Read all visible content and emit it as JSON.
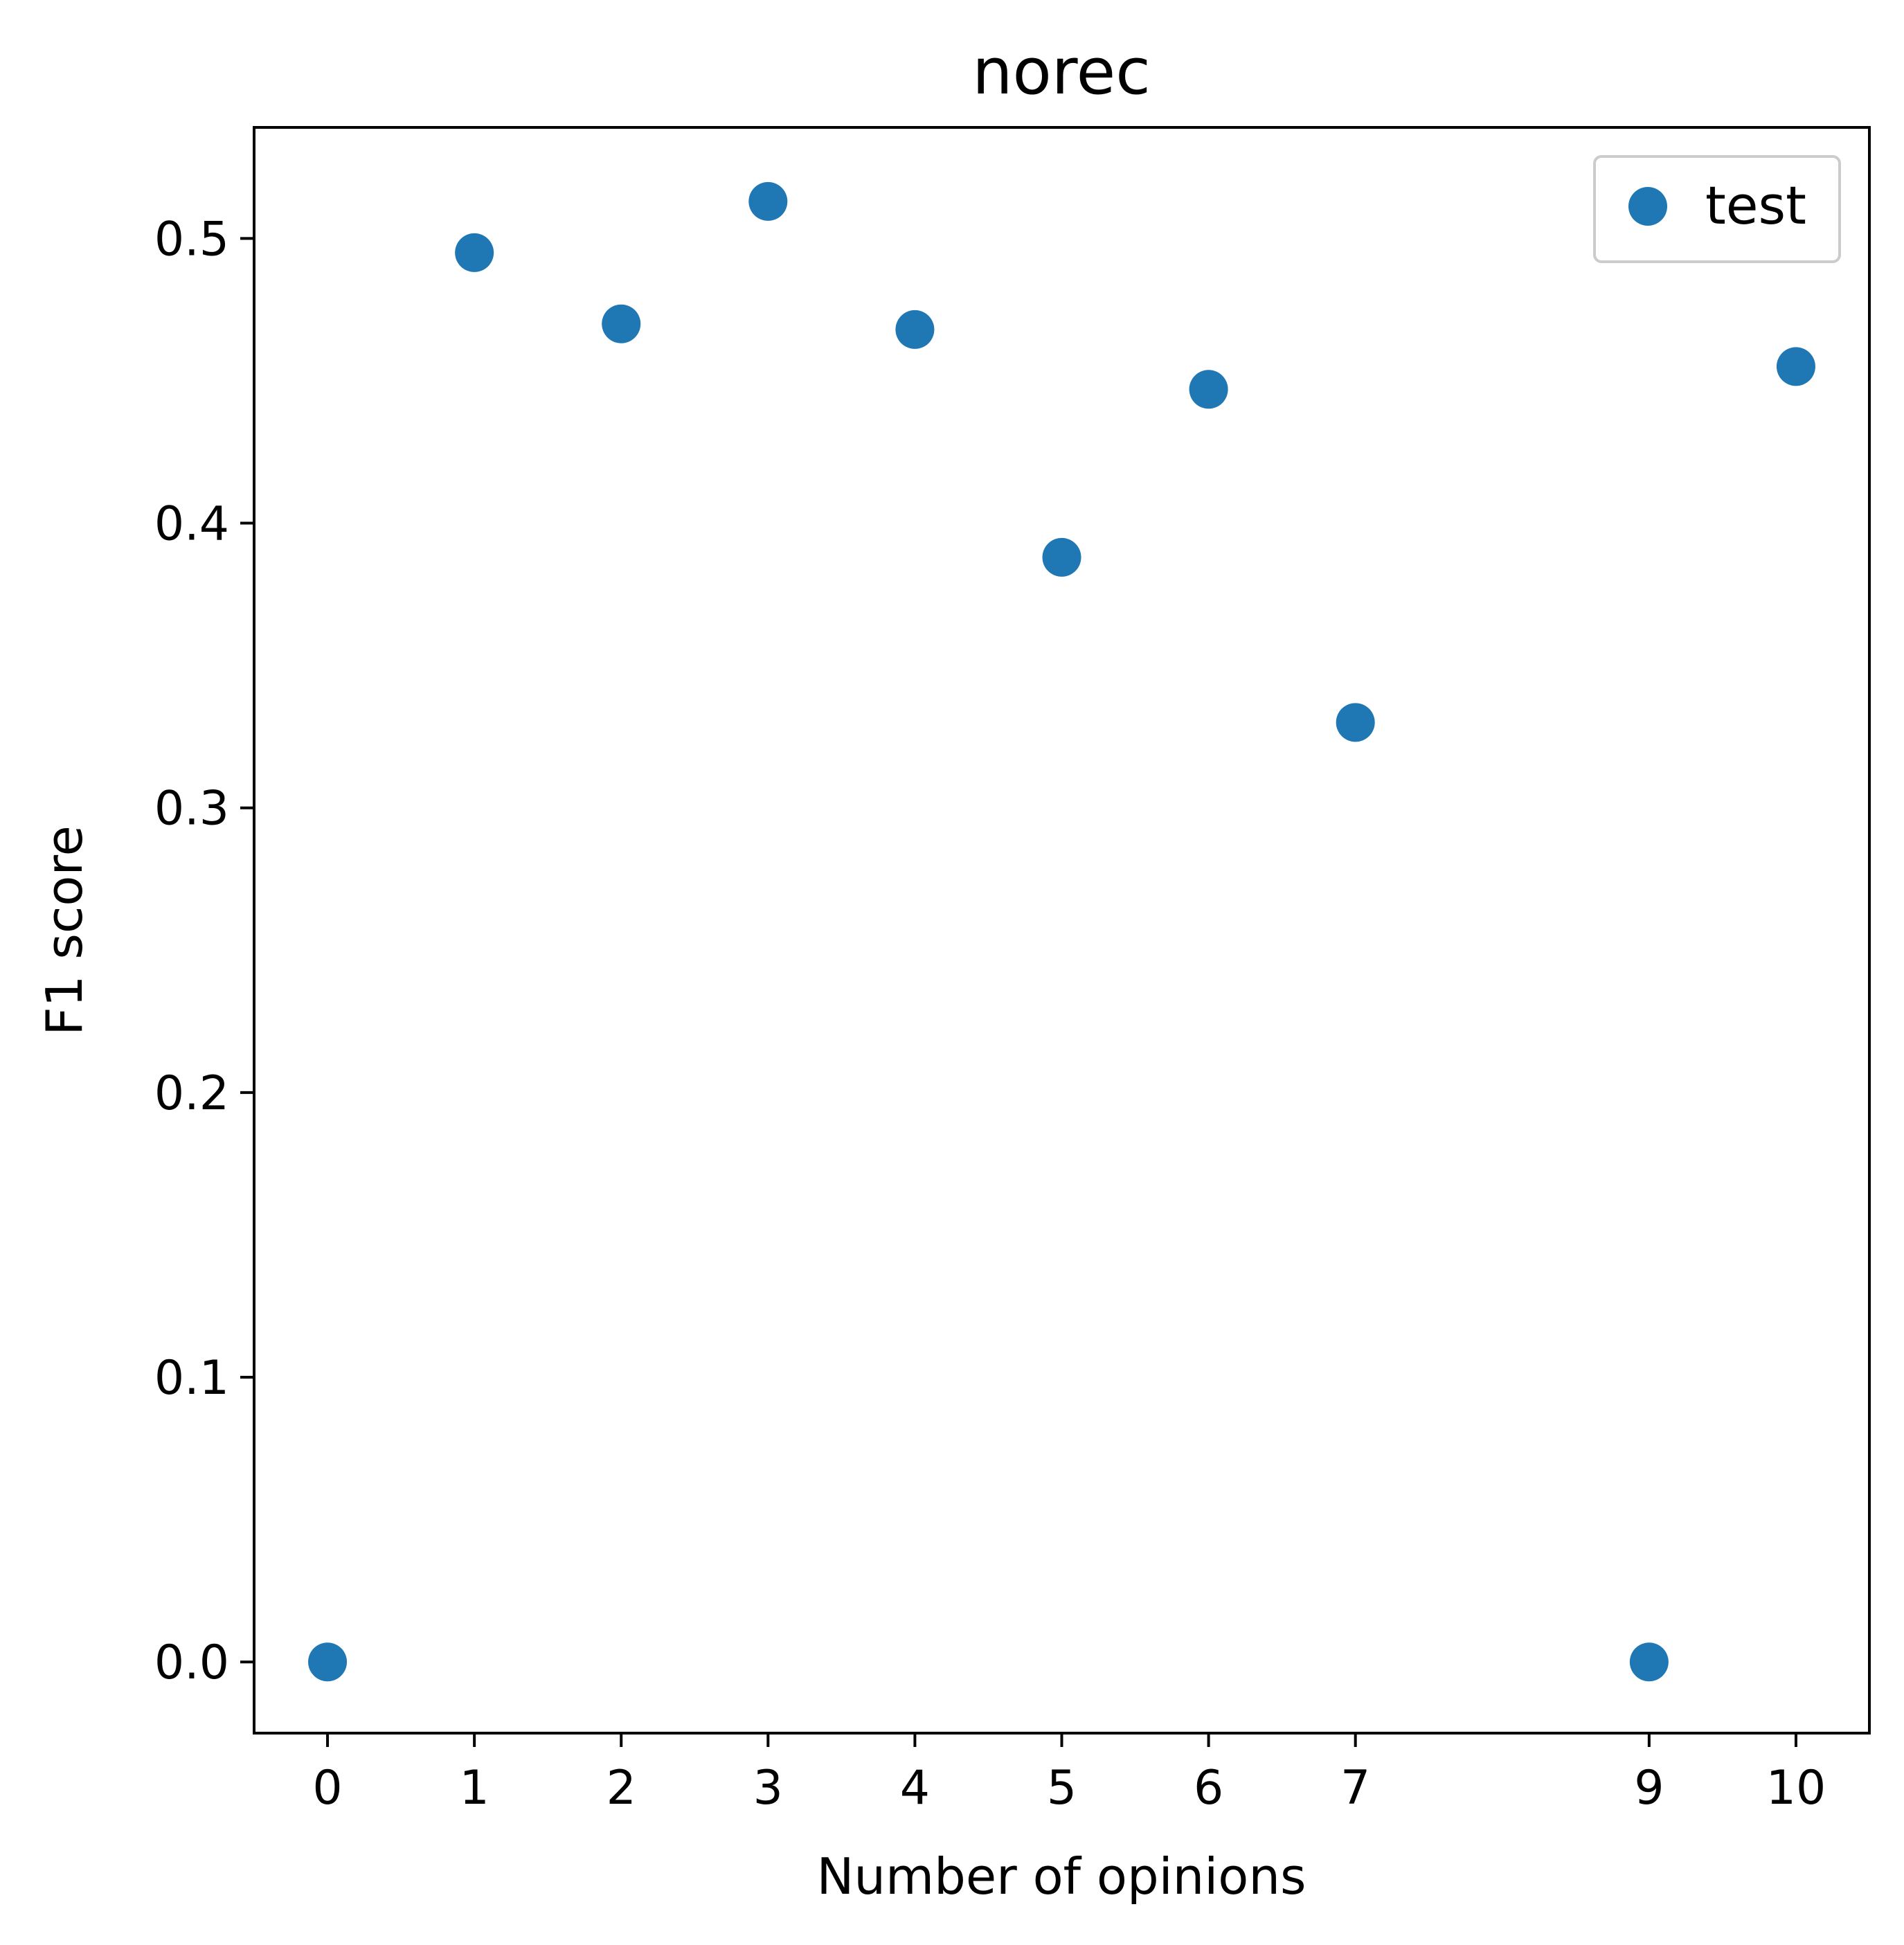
{
  "chart_data": {
    "type": "scatter",
    "title": "norec",
    "xlabel": "Number of opinions",
    "ylabel": "F1 score",
    "x_ticks": [
      "0",
      "1",
      "2",
      "3",
      "4",
      "5",
      "6",
      "7",
      "9",
      "10"
    ],
    "y_ticks": [
      "0.0",
      "0.1",
      "0.2",
      "0.3",
      "0.4",
      "0.5"
    ],
    "xlim": [
      -0.5,
      10.5
    ],
    "ylim": [
      -0.025,
      0.539
    ],
    "grid": false,
    "legend_position": "top-right",
    "series": [
      {
        "name": "test",
        "color": "#1f77b4",
        "x": [
          0,
          1,
          2,
          3,
          4,
          5,
          6,
          7,
          9,
          10
        ],
        "y": [
          0.0,
          0.495,
          0.47,
          0.513,
          0.468,
          0.388,
          0.447,
          0.33,
          0.0,
          0.455
        ]
      }
    ]
  }
}
